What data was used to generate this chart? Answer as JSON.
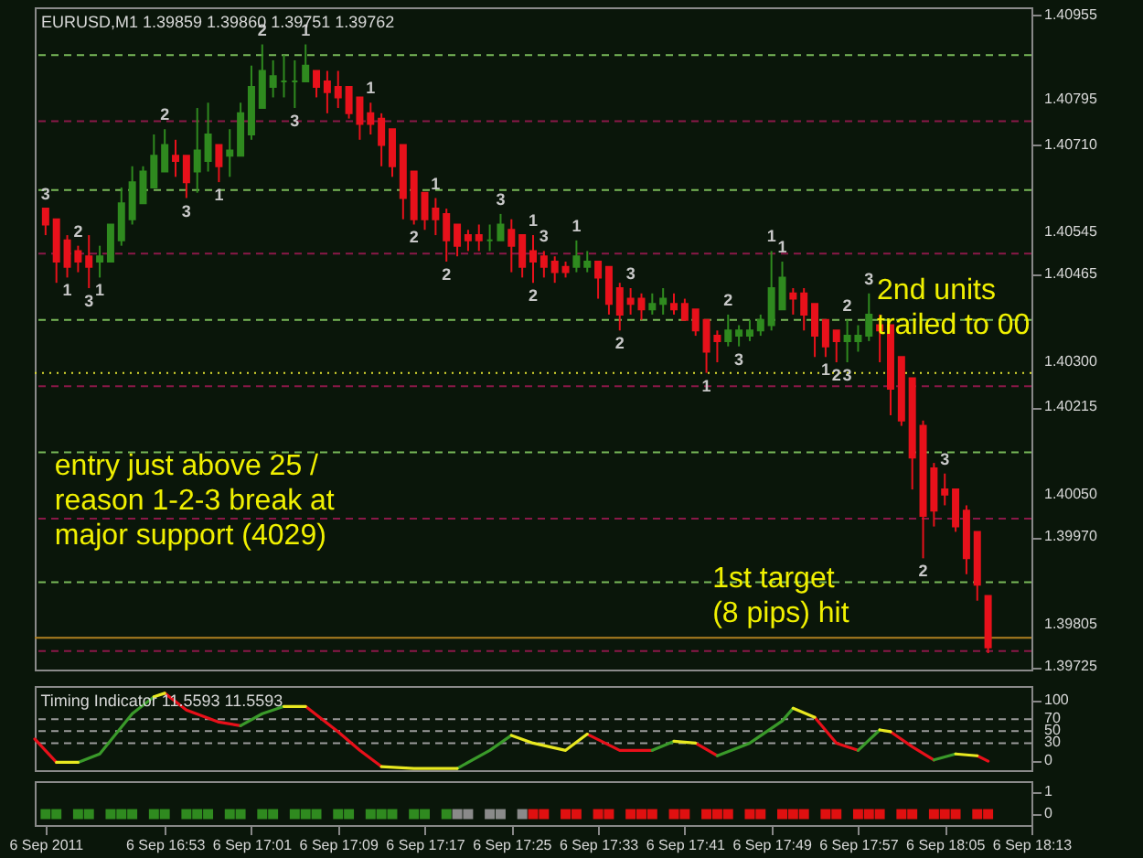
{
  "chart_data": [
    {
      "type": "candlestick",
      "title": "EURUSD,M1 1.39859 1.39860 1.39751 1.39762",
      "tick_labels": "y",
      "xlim": [
        "2011-09-06T16:41",
        "2011-09-06T18:13"
      ],
      "ylim": [
        1.3972,
        1.4097
      ],
      "yticks": [
        1.40955,
        1.40795,
        {
          "value": 1.4071,
          "label": "1.40710"
        },
        1.40545,
        1.40465,
        {
          "value": 1.403,
          "label": "1.40300"
        },
        1.40215,
        {
          "value": 1.4005,
          "label": "1.40050"
        },
        {
          "value": 1.3997,
          "label": "1.39970"
        },
        1.39805,
        1.39725
      ],
      "x": [
        "2011-09-06T16:42",
        "2011-09-06T16:43",
        "2011-09-06T16:44",
        "2011-09-06T16:45",
        "2011-09-06T16:46",
        "2011-09-06T16:47",
        "2011-09-06T16:48",
        "2011-09-06T16:49",
        "2011-09-06T16:50",
        "2011-09-06T16:51",
        "2011-09-06T16:52",
        "2011-09-06T16:53",
        "2011-09-06T16:54",
        "2011-09-06T16:55",
        "2011-09-06T16:56",
        "2011-09-06T16:57",
        "2011-09-06T16:58",
        "2011-09-06T16:59",
        "2011-09-06T17:00",
        "2011-09-06T17:01",
        "2011-09-06T17:02",
        "2011-09-06T17:03",
        "2011-09-06T17:04",
        "2011-09-06T17:05",
        "2011-09-06T17:06",
        "2011-09-06T17:07",
        "2011-09-06T17:08",
        "2011-09-06T17:09",
        "2011-09-06T17:10",
        "2011-09-06T17:11",
        "2011-09-06T17:12",
        "2011-09-06T17:13",
        "2011-09-06T17:14",
        "2011-09-06T17:15",
        "2011-09-06T17:16",
        "2011-09-06T17:17",
        "2011-09-06T17:18",
        "2011-09-06T17:19",
        "2011-09-06T17:20",
        "2011-09-06T17:21",
        "2011-09-06T17:22",
        "2011-09-06T17:23",
        "2011-09-06T17:24",
        "2011-09-06T17:25",
        "2011-09-06T17:26",
        "2011-09-06T17:27",
        "2011-09-06T17:28",
        "2011-09-06T17:29",
        "2011-09-06T17:30",
        "2011-09-06T17:31",
        "2011-09-06T17:32",
        "2011-09-06T17:33",
        "2011-09-06T17:34",
        "2011-09-06T17:35",
        "2011-09-06T17:36",
        "2011-09-06T17:37",
        "2011-09-06T17:38",
        "2011-09-06T17:39",
        "2011-09-06T17:40",
        "2011-09-06T17:41",
        "2011-09-06T17:42",
        "2011-09-06T17:43",
        "2011-09-06T17:44",
        "2011-09-06T17:45",
        "2011-09-06T17:46",
        "2011-09-06T17:47",
        "2011-09-06T17:48",
        "2011-09-06T17:49",
        "2011-09-06T17:50",
        "2011-09-06T17:51",
        "2011-09-06T17:52",
        "2011-09-06T17:53",
        "2011-09-06T17:54",
        "2011-09-06T17:55",
        "2011-09-06T17:56",
        "2011-09-06T17:57",
        "2011-09-06T17:58",
        "2011-09-06T17:59",
        "2011-09-06T18:00",
        "2011-09-06T18:01",
        "2011-09-06T18:02",
        "2011-09-06T18:03",
        "2011-09-06T18:04",
        "2011-09-06T18:05",
        "2011-09-06T18:06",
        "2011-09-06T18:07",
        "2011-09-06T18:08",
        "2011-09-06T18:09"
      ],
      "ohlc": [
        [
          1.4059,
          1.4059,
          1.4054,
          1.4056
        ],
        [
          1.4057,
          1.4057,
          1.4045,
          1.4049
        ],
        [
          1.4053,
          1.4054,
          1.4046,
          1.4048
        ],
        [
          1.4051,
          1.4052,
          1.4047,
          1.4049
        ],
        [
          1.405,
          1.4054,
          1.4044,
          1.4048
        ],
        [
          1.4049,
          1.4052,
          1.4046,
          1.405
        ],
        [
          1.4049,
          1.4056,
          1.4049,
          1.4056
        ],
        [
          1.4053,
          1.4063,
          1.4052,
          1.406
        ],
        [
          1.4057,
          1.4067,
          1.4056,
          1.4064
        ],
        [
          1.406,
          1.4067,
          1.406,
          1.4066
        ],
        [
          1.4063,
          1.4073,
          1.4063,
          1.4069
        ],
        [
          1.4066,
          1.4074,
          1.4066,
          1.4071
        ],
        [
          1.4069,
          1.4072,
          1.4065,
          1.4068
        ],
        [
          1.4069,
          1.4069,
          1.4061,
          1.4064
        ],
        [
          1.4066,
          1.4078,
          1.4062,
          1.407
        ],
        [
          1.4068,
          1.4079,
          1.4066,
          1.4073
        ],
        [
          1.4071,
          1.4071,
          1.4064,
          1.4067
        ],
        [
          1.4069,
          1.4074,
          1.4065,
          1.407
        ],
        [
          1.4069,
          1.4079,
          1.4069,
          1.4077
        ],
        [
          1.4073,
          1.4086,
          1.4072,
          1.4082
        ],
        [
          1.4078,
          1.409,
          1.4078,
          1.4085
        ],
        [
          1.4082,
          1.4087,
          1.408,
          1.4084
        ],
        [
          1.4083,
          1.4088,
          1.408,
          1.4083
        ],
        [
          1.4083,
          1.4087,
          1.4078,
          1.4083
        ],
        [
          1.4083,
          1.409,
          1.4083,
          1.4086
        ],
        [
          1.4085,
          1.4085,
          1.408,
          1.4082
        ],
        [
          1.4083,
          1.4085,
          1.4077,
          1.4081
        ],
        [
          1.4082,
          1.4085,
          1.4078,
          1.408
        ],
        [
          1.4082,
          1.4082,
          1.4076,
          1.4077
        ],
        [
          1.408,
          1.408,
          1.4072,
          1.4075
        ],
        [
          1.4077,
          1.4079,
          1.4073,
          1.4075
        ],
        [
          1.4076,
          1.4077,
          1.4067,
          1.4071
        ],
        [
          1.4074,
          1.4074,
          1.4065,
          1.4067
        ],
        [
          1.4071,
          1.4071,
          1.4057,
          1.4061
        ],
        [
          1.4066,
          1.4066,
          1.4056,
          1.4057
        ],
        [
          1.4062,
          1.4062,
          1.4055,
          1.4057
        ],
        [
          1.4059,
          1.4061,
          1.4054,
          1.4057
        ],
        [
          1.4058,
          1.4059,
          1.4049,
          1.4053
        ],
        [
          1.4056,
          1.4056,
          1.405,
          1.4052
        ],
        [
          1.4054,
          1.4055,
          1.4051,
          1.4053
        ],
        [
          1.4054,
          1.4056,
          1.4051,
          1.4053
        ],
        [
          1.4053,
          1.4056,
          1.4051,
          1.4053
        ],
        [
          1.4053,
          1.4058,
          1.4053,
          1.4056
        ],
        [
          1.4055,
          1.4057,
          1.4047,
          1.4052
        ],
        [
          1.4054,
          1.4054,
          1.4046,
          1.4048
        ],
        [
          1.4051,
          1.4054,
          1.4045,
          1.4049
        ],
        [
          1.405,
          1.4051,
          1.4046,
          1.4048
        ],
        [
          1.4049,
          1.405,
          1.4045,
          1.4047
        ],
        [
          1.4048,
          1.4049,
          1.4046,
          1.4047
        ],
        [
          1.4048,
          1.4053,
          1.4047,
          1.405
        ],
        [
          1.4048,
          1.4051,
          1.4047,
          1.4049
        ],
        [
          1.4049,
          1.4049,
          1.4042,
          1.4046
        ],
        [
          1.4048,
          1.4048,
          1.4039,
          1.4041
        ],
        [
          1.4044,
          1.4045,
          1.4036,
          1.4039
        ],
        [
          1.4042,
          1.4044,
          1.4039,
          1.4041
        ],
        [
          1.4042,
          1.4043,
          1.4038,
          1.404
        ],
        [
          1.404,
          1.4043,
          1.4039,
          1.4041
        ],
        [
          1.4041,
          1.4044,
          1.4039,
          1.4042
        ],
        [
          1.4041,
          1.4043,
          1.4039,
          1.404
        ],
        [
          1.4041,
          1.4042,
          1.4038,
          1.4038
        ],
        [
          1.404,
          1.404,
          1.4035,
          1.4036
        ],
        [
          1.4038,
          1.4038,
          1.4028,
          1.4032
        ],
        [
          1.4035,
          1.4036,
          1.403,
          1.4034
        ],
        [
          1.4034,
          1.4039,
          1.4033,
          1.4036
        ],
        [
          1.4035,
          1.4037,
          1.4033,
          1.4036
        ],
        [
          1.4035,
          1.4038,
          1.4034,
          1.4036
        ],
        [
          1.4036,
          1.4039,
          1.4035,
          1.4038
        ],
        [
          1.4037,
          1.4051,
          1.4036,
          1.4044
        ],
        [
          1.404,
          1.4049,
          1.404,
          1.4046
        ],
        [
          1.4043,
          1.4044,
          1.4039,
          1.4042
        ],
        [
          1.4043,
          1.4044,
          1.4036,
          1.4039
        ],
        [
          1.4041,
          1.4041,
          1.4031,
          1.4035
        ],
        [
          1.4038,
          1.4038,
          1.4031,
          1.4033
        ],
        [
          1.4036,
          1.4036,
          1.403,
          1.4034
        ],
        [
          1.4034,
          1.4038,
          1.403,
          1.4035
        ],
        [
          1.4034,
          1.4037,
          1.4032,
          1.4035
        ],
        [
          1.4035,
          1.4043,
          1.4034,
          1.4039
        ],
        [
          1.4037,
          1.4039,
          1.403,
          1.4036
        ],
        [
          1.4037,
          1.4037,
          1.402,
          1.4025
        ],
        [
          1.4031,
          1.4031,
          1.4018,
          1.4019
        ],
        [
          1.4027,
          1.4027,
          1.4006,
          1.4012
        ],
        [
          1.4018,
          1.4019,
          1.3993,
          1.4001
        ],
        [
          1.401,
          1.4011,
          1.3999,
          1.4002
        ],
        [
          1.4006,
          1.4009,
          1.4003,
          1.4005
        ],
        [
          1.4006,
          1.4006,
          1.3998,
          1.3999
        ],
        [
          1.4002,
          1.4003,
          1.399,
          1.3993
        ],
        [
          1.3998,
          1.3998,
          1.3985,
          1.3988
        ],
        [
          1.39859,
          1.3986,
          1.39751,
          1.39762
        ]
      ],
      "colors": [
        "#e8111b",
        "#e8111b",
        "#e8111b",
        "#e8111b",
        "#e8111b",
        "#2f8a1f",
        "#2f8a1f",
        "#2f8a1f",
        "#2f8a1f",
        "#2f8a1f",
        "#2f8a1f",
        "#2f8a1f",
        "#e8111b",
        "#e8111b",
        "#2f8a1f",
        "#2f8a1f",
        "#e8111b",
        "#2f8a1f",
        "#2f8a1f",
        "#2f8a1f",
        "#2f8a1f",
        "#2f8a1f",
        "#2f8a1f",
        "#2f8a1f",
        "#2f8a1f",
        "#e8111b",
        "#e8111b",
        "#e8111b",
        "#e8111b",
        "#e8111b",
        "#e8111b",
        "#e8111b",
        "#e8111b",
        "#e8111b",
        "#e8111b",
        "#e8111b",
        "#e8111b",
        "#e8111b",
        "#e8111b",
        "#e8111b",
        "#e8111b",
        "#2f8a1f",
        "#2f8a1f",
        "#e8111b",
        "#e8111b",
        "#e8111b",
        "#e8111b",
        "#e8111b",
        "#e8111b",
        "#2f8a1f",
        "#2f8a1f",
        "#e8111b",
        "#e8111b",
        "#e8111b",
        "#e8111b",
        "#e8111b",
        "#2f8a1f",
        "#2f8a1f",
        "#e8111b",
        "#e8111b",
        "#e8111b",
        "#e8111b",
        "#e8111b",
        "#2f8a1f",
        "#2f8a1f",
        "#2f8a1f",
        "#2f8a1f",
        "#2f8a1f",
        "#2f8a1f",
        "#e8111b",
        "#e8111b",
        "#e8111b",
        "#e8111b",
        "#e8111b",
        "#2f8a1f",
        "#2f8a1f",
        "#2f8a1f",
        "#e8111b",
        "#e8111b",
        "#e8111b",
        "#e8111b",
        "#e8111b",
        "#e8111b",
        "#e8111b",
        "#e8111b",
        "#e8111b",
        "#e8111b",
        "#e8111b"
      ],
      "ref_lines": [
        {
          "axis": "y",
          "value": 1.4088,
          "color": "#78b858",
          "line_style": "dashed"
        },
        {
          "axis": "y",
          "value": 1.40625,
          "color": "#78b858",
          "line_style": "dashed"
        },
        {
          "axis": "y",
          "value": 1.4038,
          "color": "#78b858",
          "line_style": "dashed"
        },
        {
          "axis": "y",
          "value": 1.4013,
          "color": "#78b858",
          "line_style": "dashed"
        },
        {
          "axis": "y",
          "value": 1.39885,
          "color": "#78b858",
          "line_style": "dashed"
        },
        {
          "axis": "y",
          "value": 1.40755,
          "color": "#8a1848",
          "line_style": "dashed"
        },
        {
          "axis": "y",
          "value": 1.40505,
          "color": "#8a1848",
          "line_style": "dashed"
        },
        {
          "axis": "y",
          "value": 1.40255,
          "color": "#8a1848",
          "line_style": "dashed"
        },
        {
          "axis": "y",
          "value": 1.40005,
          "color": "#8a1848",
          "line_style": "dashed"
        },
        {
          "axis": "y",
          "value": 1.39755,
          "color": "#8a1848",
          "line_style": "dashed"
        },
        {
          "axis": "y",
          "value": 1.4028,
          "color": "#e0e030",
          "line_style": "dotted"
        },
        {
          "axis": "y",
          "value": 1.3978,
          "color": "#b08020",
          "line_style": "solid"
        }
      ],
      "annotations": [
        "entry just above 25 /\nreason 1-2-3 break at\nmajor support (4029)",
        "1st target\n(8 pips) hit",
        "2nd units\ntrailed to 00",
        {
          "text": "3",
          "x": "2011-09-06T16:42",
          "y": 1.4059
        },
        {
          "text": "2",
          "x": "2011-09-06T16:45",
          "y": 1.4052
        },
        {
          "text": "1",
          "x": "2011-09-06T16:44",
          "y": 1.4046
        },
        {
          "text": "3",
          "x": "2011-09-06T16:46",
          "y": 1.4044
        },
        {
          "text": "1",
          "x": "2011-09-06T16:47",
          "y": 1.4046
        },
        {
          "text": "2",
          "x": "2011-09-06T16:53",
          "y": 1.4074
        },
        {
          "text": "3",
          "x": "2011-09-06T16:55",
          "y": 1.4061
        },
        {
          "text": "1",
          "x": "2011-09-06T16:58",
          "y": 1.4064
        },
        {
          "text": "2",
          "x": "2011-09-06T17:02",
          "y": 1.409
        },
        {
          "text": "3",
          "x": "2011-09-06T17:05",
          "y": 1.4078
        },
        {
          "text": "1",
          "x": "2011-09-06T17:06",
          "y": 1.409
        },
        {
          "text": "1",
          "x": "2011-09-06T17:12",
          "y": 1.4079
        },
        {
          "text": "2",
          "x": "2011-09-06T17:16",
          "y": 1.4056
        },
        {
          "text": "1",
          "x": "2011-09-06T17:18",
          "y": 1.4061
        },
        {
          "text": "2",
          "x": "2011-09-06T17:19",
          "y": 1.4049
        },
        {
          "text": "3",
          "x": "2011-09-06T17:24",
          "y": 1.4058
        },
        {
          "text": "1",
          "x": "2011-09-06T17:27",
          "y": 1.4054
        },
        {
          "text": "2",
          "x": "2011-09-06T17:27",
          "y": 1.4045
        },
        {
          "text": "3",
          "x": "2011-09-06T17:28",
          "y": 1.4051
        },
        {
          "text": "1",
          "x": "2011-09-06T17:31",
          "y": 1.4053
        },
        {
          "text": "2",
          "x": "2011-09-06T17:35",
          "y": 1.4036
        },
        {
          "text": "3",
          "x": "2011-09-06T17:36",
          "y": 1.4044
        },
        {
          "text": "1",
          "x": "2011-09-06T17:43",
          "y": 1.4028
        },
        {
          "text": "2",
          "x": "2011-09-06T17:45",
          "y": 1.4039
        },
        {
          "text": "3",
          "x": "2011-09-06T17:46",
          "y": 1.4033
        },
        {
          "text": "1",
          "x": "2011-09-06T17:49",
          "y": 1.4051
        },
        {
          "text": "1",
          "x": "2011-09-06T17:50",
          "y": 1.4049
        },
        {
          "text": "1",
          "x": "2011-09-06T17:54",
          "y": 1.4031
        },
        {
          "text": "2",
          "x": "2011-09-06T17:55",
          "y": 1.403
        },
        {
          "text": "2",
          "x": "2011-09-06T17:56",
          "y": 1.4038
        },
        {
          "text": "3",
          "x": "2011-09-06T17:56",
          "y": 1.403
        },
        {
          "text": "3",
          "x": "2011-09-06T17:58",
          "y": 1.4043
        },
        {
          "text": "2",
          "x": "2011-09-06T18:03",
          "y": 1.3993
        },
        {
          "text": "3",
          "x": "2011-09-06T18:05",
          "y": 1.4009
        }
      ]
    },
    {
      "type": "line",
      "title": "Timing Indicator 11.5593 11.5593",
      "tick_labels": "y",
      "ref_lines": [
        {
          "axis": "y",
          "value": 30,
          "color": "#9a9a9a",
          "line_style": "dashed"
        },
        {
          "axis": "y",
          "value": 50,
          "color": "#9a9a9a",
          "line_style": "dashed"
        },
        {
          "axis": "y",
          "value": 70,
          "color": "#9a9a9a",
          "line_style": "dashed"
        }
      ],
      "xlim": [
        "2011-09-06T16:41",
        "2011-09-06T18:13"
      ],
      "ylim": [
        -15,
        125
      ],
      "yticks": [
        0,
        30,
        50,
        70,
        100
      ],
      "x": [
        "2011-09-06T16:41",
        "2011-09-06T16:43",
        "2011-09-06T16:45",
        "2011-09-06T16:47",
        "2011-09-06T16:50",
        "2011-09-06T16:52",
        "2011-09-06T16:53",
        "2011-09-06T16:55",
        "2011-09-06T16:58",
        "2011-09-06T17:00",
        "2011-09-06T17:02",
        "2011-09-06T17:04",
        "2011-09-06T17:06",
        "2011-09-06T17:09",
        "2011-09-06T17:11",
        "2011-09-06T17:13",
        "2011-09-06T17:16",
        "2011-09-06T17:20",
        "2011-09-06T17:23",
        "2011-09-06T17:25",
        "2011-09-06T17:27",
        "2011-09-06T17:30",
        "2011-09-06T17:32",
        "2011-09-06T17:35",
        "2011-09-06T17:38",
        "2011-09-06T17:40",
        "2011-09-06T17:42",
        "2011-09-06T17:44",
        "2011-09-06T17:47",
        "2011-09-06T17:50",
        "2011-09-06T17:51",
        "2011-09-06T17:53",
        "2011-09-06T17:55",
        "2011-09-06T17:57",
        "2011-09-06T17:59",
        "2011-09-06T18:00",
        "2011-09-06T18:02",
        "2011-09-06T18:04",
        "2011-09-06T18:06",
        "2011-09-06T18:08",
        "2011-09-06T18:09"
      ],
      "series": [
        {
          "color": "#e8101a",
          "values": [
            37,
            -2,
            null,
            null,
            null,
            null,
            113,
            85,
            65,
            59,
            null,
            null,
            91,
            49,
            18,
            -9,
            null,
            null,
            null,
            null,
            null,
            null,
            45,
            18,
            18,
            null,
            30,
            9,
            null,
            null,
            null,
            73,
            30,
            18,
            null,
            49,
            24,
            2,
            null,
            9,
            0
          ]
        },
        {
          "color": "#3a9a2a",
          "values": [
            null,
            null,
            -2,
            12,
            79,
            107,
            null,
            null,
            null,
            59,
            79,
            91,
            null,
            null,
            null,
            null,
            null,
            -12,
            18,
            43,
            null,
            null,
            null,
            null,
            18,
            33,
            null,
            9,
            30,
            67,
            88,
            null,
            null,
            18,
            52,
            null,
            null,
            2,
            12,
            null,
            null
          ]
        },
        {
          "color": "#e8e820",
          "values": [
            null,
            -2,
            -2,
            null,
            null,
            107,
            113,
            null,
            null,
            null,
            null,
            91,
            91,
            null,
            null,
            -9,
            -12,
            -12,
            null,
            43,
            30,
            18,
            45,
            null,
            null,
            33,
            30,
            null,
            null,
            null,
            88,
            73,
            null,
            null,
            52,
            49,
            null,
            null,
            12,
            9,
            null
          ]
        }
      ]
    },
    {
      "type": "scatter",
      "marker": "square",
      "xlim": [
        "2011-09-06T16:41",
        "2011-09-06T18:13"
      ],
      "ylim": [
        -0.5,
        1.5
      ],
      "yticks": [
        0,
        1
      ],
      "xticks": [
        {
          "value": "2011-09-06T16:42",
          "label": "6 Sep 2011"
        },
        {
          "value": "2011-09-06T16:53",
          "label": "6 Sep 16:53"
        },
        {
          "value": "2011-09-06T17:01",
          "label": "6 Sep 17:01"
        },
        {
          "value": "2011-09-06T17:09",
          "label": "6 Sep 17:09"
        },
        {
          "value": "2011-09-06T17:17",
          "label": "6 Sep 17:17"
        },
        {
          "value": "2011-09-06T17:25",
          "label": "6 Sep 17:25"
        },
        {
          "value": "2011-09-06T17:33",
          "label": "6 Sep 17:33"
        },
        {
          "value": "2011-09-06T17:41",
          "label": "6 Sep 17:41"
        },
        {
          "value": "2011-09-06T17:49",
          "label": "6 Sep 17:49"
        },
        {
          "value": "2011-09-06T17:57",
          "label": "6 Sep 17:57"
        },
        {
          "value": "2011-09-06T18:05",
          "label": "6 Sep 18:05"
        },
        {
          "value": "2011-09-06T18:13",
          "label": "6 Sep 18:13"
        }
      ],
      "series": [
        {
          "color": "#2f8a1f",
          "x": [
            "2011-09-06T16:42",
            "2011-09-06T16:43",
            "2011-09-06T16:45",
            "2011-09-06T16:46",
            "2011-09-06T16:48",
            "2011-09-06T16:49",
            "2011-09-06T16:50",
            "2011-09-06T16:52",
            "2011-09-06T16:53",
            "2011-09-06T16:55",
            "2011-09-06T16:56",
            "2011-09-06T16:57",
            "2011-09-06T16:59",
            "2011-09-06T17:00",
            "2011-09-06T17:02",
            "2011-09-06T17:03",
            "2011-09-06T17:05",
            "2011-09-06T17:06",
            "2011-09-06T17:07",
            "2011-09-06T17:09",
            "2011-09-06T17:10",
            "2011-09-06T17:12",
            "2011-09-06T17:13",
            "2011-09-06T17:14",
            "2011-09-06T17:16",
            "2011-09-06T17:17",
            "2011-09-06T17:19"
          ],
          "values": [
            0,
            0,
            0,
            0,
            0,
            0,
            0,
            0,
            0,
            0,
            0,
            0,
            0,
            0,
            0,
            0,
            0,
            0,
            0,
            0,
            0,
            0,
            0,
            0,
            0,
            0,
            0
          ]
        },
        {
          "color": "#8a8a8a",
          "x": [
            "2011-09-06T17:20",
            "2011-09-06T17:21",
            "2011-09-06T17:23",
            "2011-09-06T17:24",
            "2011-09-06T17:26"
          ],
          "values": [
            0,
            0,
            0,
            0,
            0
          ]
        },
        {
          "color": "#e01010",
          "x": [
            "2011-09-06T17:27",
            "2011-09-06T17:28",
            "2011-09-06T17:30",
            "2011-09-06T17:31",
            "2011-09-06T17:33",
            "2011-09-06T17:34",
            "2011-09-06T17:36",
            "2011-09-06T17:37",
            "2011-09-06T17:38",
            "2011-09-06T17:40",
            "2011-09-06T17:41",
            "2011-09-06T17:43",
            "2011-09-06T17:44",
            "2011-09-06T17:45",
            "2011-09-06T17:47",
            "2011-09-06T17:48",
            "2011-09-06T17:50",
            "2011-09-06T17:51",
            "2011-09-06T17:52",
            "2011-09-06T17:54",
            "2011-09-06T17:55",
            "2011-09-06T17:57",
            "2011-09-06T17:58",
            "2011-09-06T17:59",
            "2011-09-06T18:01",
            "2011-09-06T18:02",
            "2011-09-06T18:04",
            "2011-09-06T18:05",
            "2011-09-06T18:06",
            "2011-09-06T18:08",
            "2011-09-06T18:09"
          ],
          "values": [
            0,
            0,
            0,
            0,
            0,
            0,
            0,
            0,
            0,
            0,
            0,
            0,
            0,
            0,
            0,
            0,
            0,
            0,
            0,
            0,
            0,
            0,
            0,
            0,
            0,
            0,
            0,
            0,
            0,
            0,
            0
          ]
        }
      ]
    }
  ]
}
